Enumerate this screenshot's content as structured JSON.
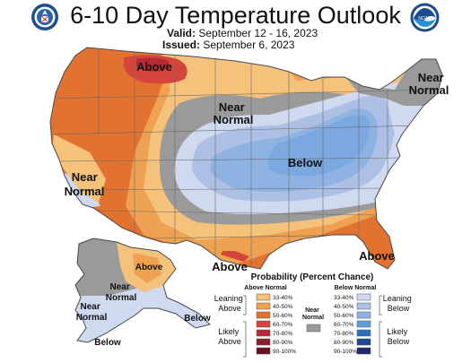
{
  "header": {
    "title": "6-10 Day Temperature Outlook",
    "valid_label": "Valid:",
    "valid_dates": "September 12 - 16, 2023",
    "issued_label": "Issued:",
    "issued_date": "September 6, 2023"
  },
  "logos": {
    "left": "seal-icon",
    "right": "noaa-icon",
    "right_text": "NOAA"
  },
  "map_labels": {
    "above_north": "Above",
    "near_normal_plains": "Near\nNormal",
    "near_normal_ne": "Near\nNormal",
    "below_center": "Below",
    "near_normal_ca": "Near\nNormal",
    "above_gulf": "Above",
    "above_florida": "Above",
    "ak_above": "Above",
    "ak_near_normal": "Near\nNormal",
    "ak_below_se": "Below",
    "ak_below_sw": "Below",
    "ak_near_normal_aleut": "Near\nNormal"
  },
  "legend": {
    "title": "Probability (Percent Chance)",
    "above_header": "Above Normal",
    "below_header": "Below Normal",
    "near_label": "Near\nNormal",
    "leaning_above": "Leaning\nAbove",
    "likely_above": "Likely\nAbove",
    "leaning_below": "Leaning\nBelow",
    "likely_below": "Likely\nBelow",
    "above_ranges": [
      "33-40%",
      "40-50%",
      "50-60%",
      "60-70%",
      "70-80%",
      "80-90%",
      "90-100%"
    ],
    "below_ranges": [
      "33-40%",
      "40-50%",
      "50-60%",
      "60-70%",
      "70-80%",
      "80-90%",
      "90-100%"
    ],
    "above_colors": [
      "#f4c27a",
      "#eea150",
      "#e2722f",
      "#d6453c",
      "#b52b34",
      "#8f1c2a",
      "#6b0f1c"
    ],
    "below_colors": [
      "#cfd9ef",
      "#aebfe6",
      "#8eb3e3",
      "#5e9fd9",
      "#2e6fb8",
      "#1f4596",
      "#1a2a6c"
    ],
    "near_color": "#9a9a9a"
  },
  "colors": {
    "outline": "#4a4a4a",
    "state_lines": "#6a6a6a",
    "background": "#ffffff"
  }
}
